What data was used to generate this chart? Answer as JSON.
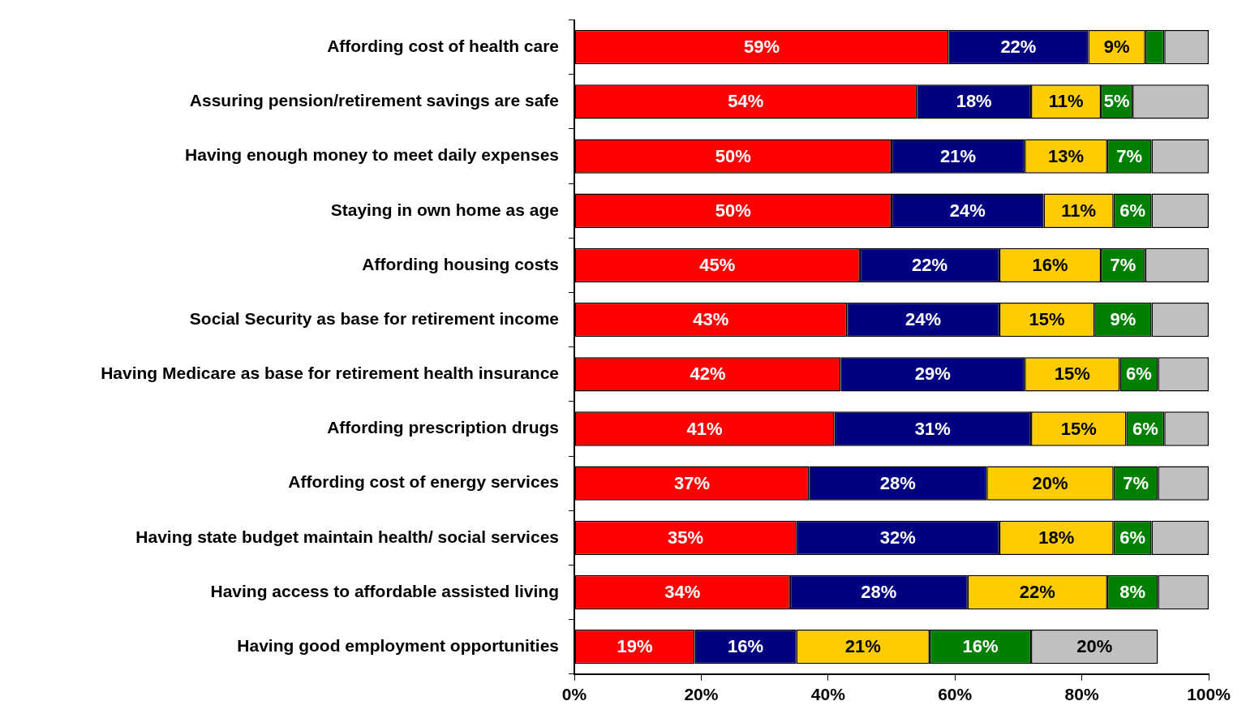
{
  "chart_data": {
    "type": "bar",
    "orientation": "horizontal",
    "stacked": true,
    "categories": [
      "Affording cost of health care",
      "Assuring pension/retirement savings are safe",
      "Having enough money to meet daily expenses",
      "Staying in own home as age",
      "Affording housing costs",
      "Social Security as base for retirement income",
      "Having Medicare as base for retirement health insurance",
      "Affording prescription drugs",
      "Affording cost of energy services",
      "Having state budget maintain health/ social services",
      "Having access to affordable assisted living",
      "Having good employment opportunities"
    ],
    "series": [
      {
        "color": "#ff0000",
        "values": [
          59,
          54,
          50,
          50,
          45,
          43,
          42,
          41,
          37,
          35,
          34,
          19
        ],
        "value_labels": [
          "59%",
          "54%",
          "50%",
          "50%",
          "45%",
          "43%",
          "42%",
          "41%",
          "37%",
          "35%",
          "34%",
          "19%"
        ]
      },
      {
        "color": "#000080",
        "values": [
          22,
          18,
          21,
          24,
          22,
          24,
          29,
          31,
          28,
          32,
          28,
          16
        ],
        "value_labels": [
          "22%",
          "18%",
          "21%",
          "24%",
          "22%",
          "24%",
          "29%",
          "31%",
          "28%",
          "32%",
          "28%",
          "16%"
        ]
      },
      {
        "color": "#ffcc00",
        "values": [
          9,
          11,
          13,
          11,
          16,
          15,
          15,
          15,
          20,
          18,
          22,
          21
        ],
        "value_labels": [
          "9%",
          "11%",
          "13%",
          "11%",
          "16%",
          "15%",
          "15%",
          "15%",
          "20%",
          "18%",
          "22%",
          "21%"
        ]
      },
      {
        "color": "#008000",
        "values": [
          3,
          5,
          7,
          6,
          7,
          9,
          6,
          6,
          7,
          6,
          8,
          16
        ],
        "value_labels": [
          null,
          "5%",
          "7%",
          "6%",
          "7%",
          "9%",
          "6%",
          "6%",
          "7%",
          "6%",
          "8%",
          "16%"
        ]
      },
      {
        "color": "#c0c0c0",
        "values": [
          7,
          12,
          9,
          9,
          10,
          9,
          8,
          7,
          8,
          9,
          8,
          20
        ],
        "value_labels": [
          null,
          null,
          null,
          null,
          null,
          null,
          null,
          null,
          null,
          null,
          null,
          "20%"
        ]
      }
    ],
    "xlim": [
      0,
      100
    ],
    "xticks": [
      {
        "value": 0,
        "label": "0%"
      },
      {
        "value": 20,
        "label": "20%"
      },
      {
        "value": 40,
        "label": "40%"
      },
      {
        "value": 60,
        "label": "60%"
      },
      {
        "value": 80,
        "label": "80%"
      },
      {
        "value": 100,
        "label": "100%"
      }
    ],
    "grid": false,
    "legend": false
  }
}
